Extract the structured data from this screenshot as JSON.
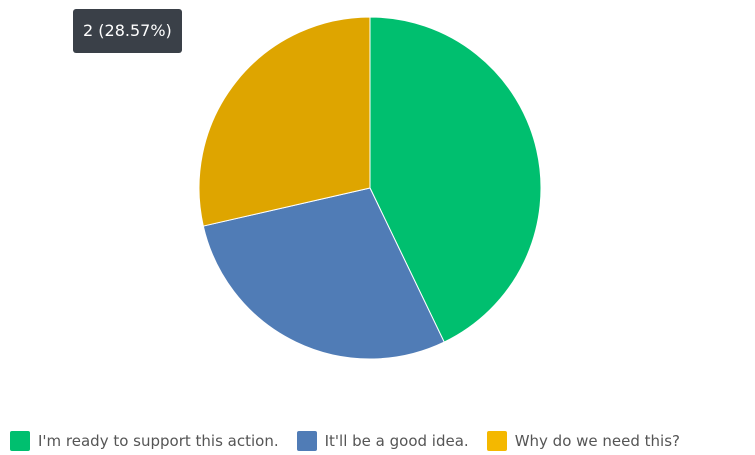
{
  "chart_data": {
    "type": "pie",
    "categories": [
      "I'm ready to support this action.",
      "It'll be a good idea.",
      "Why do we need this?"
    ],
    "values": [
      3,
      2,
      2
    ],
    "colors": [
      "#00bf6f",
      "#507cb6",
      "#dea500"
    ],
    "legend_colors": [
      "#00bf6f",
      "#507cb6",
      "#f4b800"
    ],
    "legend_position": "bottom",
    "tooltip": {
      "text": "2 (28.57%)"
    }
  }
}
